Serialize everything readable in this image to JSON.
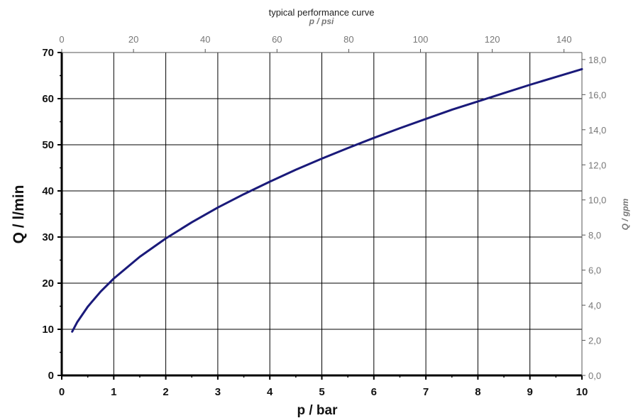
{
  "chart_data": {
    "type": "line",
    "title": "typical performance curve",
    "xlabel": "p / bar",
    "ylabel": "Q / l/min",
    "x2label": "p / psi",
    "y2label": "Q / gpm",
    "xlim": [
      0,
      10
    ],
    "ylim": [
      0,
      70
    ],
    "x2lim": [
      0,
      145
    ],
    "y2lim": [
      0,
      18.4
    ],
    "x_ticks": [
      "0",
      "1",
      "2",
      "3",
      "4",
      "5",
      "6",
      "7",
      "8",
      "9",
      "10"
    ],
    "y_ticks": [
      "0",
      "10",
      "20",
      "30",
      "40",
      "50",
      "60",
      "70"
    ],
    "x2_ticks": [
      "0",
      "20",
      "40",
      "60",
      "80",
      "100",
      "120",
      "140"
    ],
    "y2_ticks": [
      "0,0",
      "2,0",
      "4,0",
      "6,0",
      "8,0",
      "10,0",
      "12,0",
      "14,0",
      "16,0",
      "18,0"
    ],
    "grid": true,
    "line_color": "#1a1a7a",
    "series": [
      {
        "x": [
          0.2,
          0.3,
          0.5,
          0.75,
          1.0,
          1.5,
          2.0,
          2.5,
          3.0,
          3.5,
          4.0,
          4.5,
          5.0,
          5.5,
          6.0,
          6.5,
          7.0,
          7.5,
          8.0,
          8.5,
          9.0,
          9.5,
          10.0
        ],
        "values": [
          9.5,
          11.6,
          14.9,
          18.2,
          21.0,
          25.7,
          29.7,
          33.2,
          36.4,
          39.3,
          42.0,
          44.6,
          47.0,
          49.3,
          51.5,
          53.6,
          55.6,
          57.6,
          59.4,
          61.2,
          63.0,
          64.7,
          66.4
        ]
      }
    ]
  }
}
